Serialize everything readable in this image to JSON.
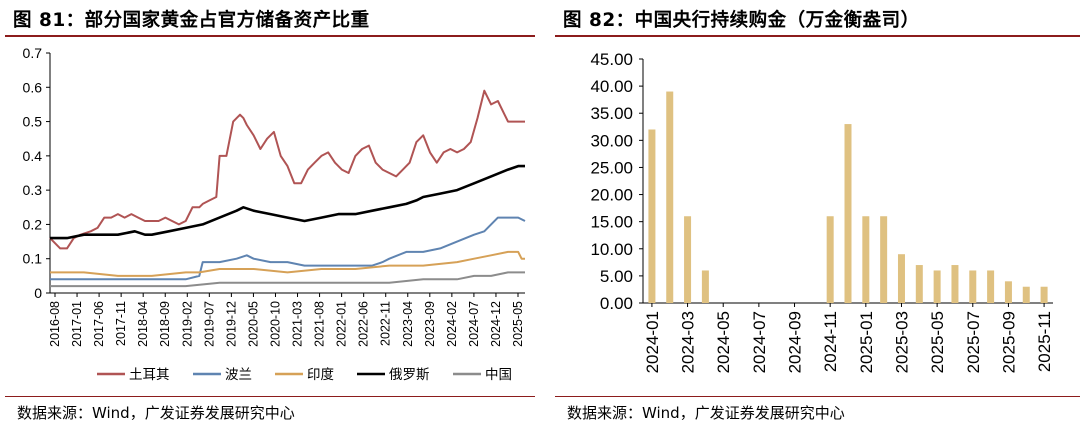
{
  "charts": [
    {
      "figure_title": "图 81：部分国家黄金占官方储备资产比重",
      "source": "数据来源：Wind，广发证券发展研究中心"
    },
    {
      "figure_title": "图 82：中国央行持续购金（万金衡盎司）",
      "source": "数据来源：Wind，广发证券发展研究中心"
    }
  ],
  "chart_data": [
    {
      "type": "line",
      "title": "部分国家黄金占官方储备资产比重",
      "xlabel": "",
      "ylabel": "",
      "ylim": [
        0,
        0.7
      ],
      "yticks": [
        "0",
        "0.1",
        "0.2",
        "0.3",
        "0.4",
        "0.5",
        "0.6",
        "0.7"
      ],
      "x_tick_labels": [
        "2016-08",
        "2017-01",
        "2017-06",
        "2017-11",
        "2018-04",
        "2018-09",
        "2019-02",
        "2019-07",
        "2019-12",
        "2020-05",
        "2020-10",
        "2021-03",
        "2021-08",
        "2022-01",
        "2022-06",
        "2022-11",
        "2023-04",
        "2023-09",
        "2024-02",
        "2024-07",
        "2024-12",
        "2025-05"
      ],
      "legend_position": "bottom",
      "series": [
        {
          "name": "土耳其",
          "color": "#b05454",
          "x": [
            0,
            3,
            5,
            7,
            9,
            12,
            14,
            16,
            18,
            20,
            22,
            24,
            26,
            28,
            30,
            32,
            34,
            36,
            38,
            40,
            42,
            44,
            45,
            47,
            49,
            50,
            52,
            54,
            56,
            57,
            58,
            60,
            62,
            64,
            66,
            68,
            70,
            72,
            74,
            76,
            78,
            80,
            82,
            84,
            86,
            88,
            90,
            92,
            94,
            96,
            98,
            100,
            102,
            104,
            106,
            108,
            110,
            112,
            114,
            116,
            118,
            120,
            122,
            124,
            126,
            128,
            130,
            132,
            134,
            135,
            136,
            137,
            138,
            139,
            140
          ],
          "values": [
            0.16,
            0.13,
            0.13,
            0.16,
            0.17,
            0.18,
            0.19,
            0.22,
            0.22,
            0.23,
            0.22,
            0.23,
            0.22,
            0.21,
            0.21,
            0.21,
            0.22,
            0.21,
            0.2,
            0.21,
            0.25,
            0.25,
            0.26,
            0.27,
            0.28,
            0.4,
            0.4,
            0.5,
            0.52,
            0.51,
            0.49,
            0.46,
            0.42,
            0.45,
            0.47,
            0.4,
            0.37,
            0.32,
            0.32,
            0.36,
            0.38,
            0.4,
            0.41,
            0.38,
            0.36,
            0.35,
            0.4,
            0.42,
            0.43,
            0.38,
            0.36,
            0.35,
            0.34,
            0.36,
            0.38,
            0.44,
            0.46,
            0.41,
            0.38,
            0.41,
            0.42,
            0.41,
            0.42,
            0.44,
            0.51,
            0.59,
            0.55,
            0.56,
            0.52,
            0.5,
            0.5,
            0.5,
            0.5,
            0.5,
            0.5
          ]
        },
        {
          "name": "波兰",
          "color": "#5f84b1",
          "x": [
            0,
            10,
            20,
            30,
            40,
            44,
            45,
            47,
            50,
            55,
            58,
            60,
            65,
            70,
            75,
            80,
            85,
            90,
            95,
            98,
            100,
            105,
            110,
            115,
            120,
            125,
            128,
            130,
            132,
            135,
            138,
            140
          ],
          "values": [
            0.04,
            0.04,
            0.04,
            0.04,
            0.04,
            0.05,
            0.09,
            0.09,
            0.09,
            0.1,
            0.11,
            0.1,
            0.09,
            0.09,
            0.08,
            0.08,
            0.08,
            0.08,
            0.08,
            0.09,
            0.1,
            0.12,
            0.12,
            0.13,
            0.15,
            0.17,
            0.18,
            0.2,
            0.22,
            0.22,
            0.22,
            0.21
          ]
        },
        {
          "name": "印度",
          "color": "#d6a157",
          "x": [
            0,
            10,
            20,
            30,
            40,
            44,
            50,
            55,
            60,
            70,
            80,
            90,
            100,
            110,
            120,
            125,
            130,
            135,
            138,
            139,
            140
          ],
          "values": [
            0.06,
            0.06,
            0.05,
            0.05,
            0.06,
            0.06,
            0.07,
            0.07,
            0.07,
            0.06,
            0.07,
            0.07,
            0.08,
            0.08,
            0.09,
            0.1,
            0.11,
            0.12,
            0.12,
            0.1,
            0.1
          ]
        },
        {
          "name": "俄罗斯",
          "color": "#000000",
          "x": [
            0,
            5,
            10,
            15,
            20,
            25,
            28,
            30,
            35,
            40,
            45,
            50,
            55,
            57,
            60,
            65,
            70,
            75,
            80,
            85,
            90,
            95,
            100,
            105,
            108,
            110,
            115,
            120,
            125,
            130,
            135,
            138,
            140
          ],
          "values": [
            0.16,
            0.16,
            0.17,
            0.17,
            0.17,
            0.18,
            0.17,
            0.17,
            0.18,
            0.19,
            0.2,
            0.22,
            0.24,
            0.25,
            0.24,
            0.23,
            0.22,
            0.21,
            0.22,
            0.23,
            0.23,
            0.24,
            0.25,
            0.26,
            0.27,
            0.28,
            0.29,
            0.3,
            0.32,
            0.34,
            0.36,
            0.37,
            0.37
          ]
        },
        {
          "name": "中国",
          "color": "#8c8c8c",
          "x": [
            0,
            10,
            20,
            30,
            40,
            50,
            60,
            70,
            80,
            90,
            100,
            110,
            115,
            120,
            125,
            130,
            135,
            140
          ],
          "values": [
            0.02,
            0.02,
            0.02,
            0.02,
            0.02,
            0.03,
            0.03,
            0.03,
            0.03,
            0.03,
            0.03,
            0.04,
            0.04,
            0.04,
            0.05,
            0.05,
            0.06,
            0.06
          ]
        }
      ]
    },
    {
      "type": "bar",
      "title": "中国央行持续购金（万金衡盎司）",
      "xlabel": "",
      "ylabel": "",
      "ylim": [
        0,
        45
      ],
      "yticks": [
        "0.00",
        "5.00",
        "10.00",
        "15.00",
        "20.00",
        "25.00",
        "30.00",
        "35.00",
        "40.00",
        "45.00"
      ],
      "color": "#dfc181",
      "categories": [
        "2024-01",
        "2024-02",
        "2024-03",
        "2024-04",
        "2024-05",
        "2024-06",
        "2024-07",
        "2024-08",
        "2024-09",
        "2024-10",
        "2024-11",
        "2024-12",
        "2025-01",
        "2025-02",
        "2025-03",
        "2025-04",
        "2025-05",
        "2025-06",
        "2025-07",
        "2025-08",
        "2025-09",
        "2025-10",
        "2025-11"
      ],
      "values": [
        32,
        39,
        16,
        6,
        0,
        0,
        0,
        0,
        0,
        0,
        16,
        33,
        16,
        16,
        9,
        7,
        6,
        7,
        6,
        6,
        4,
        3,
        3
      ],
      "x_tick_labels": [
        "2024-01",
        "2024-03",
        "2024-05",
        "2024-07",
        "2024-09",
        "2024-11",
        "2025-01",
        "2025-03",
        "2025-05",
        "2025-07",
        "2025-09",
        "2025-11"
      ]
    }
  ]
}
